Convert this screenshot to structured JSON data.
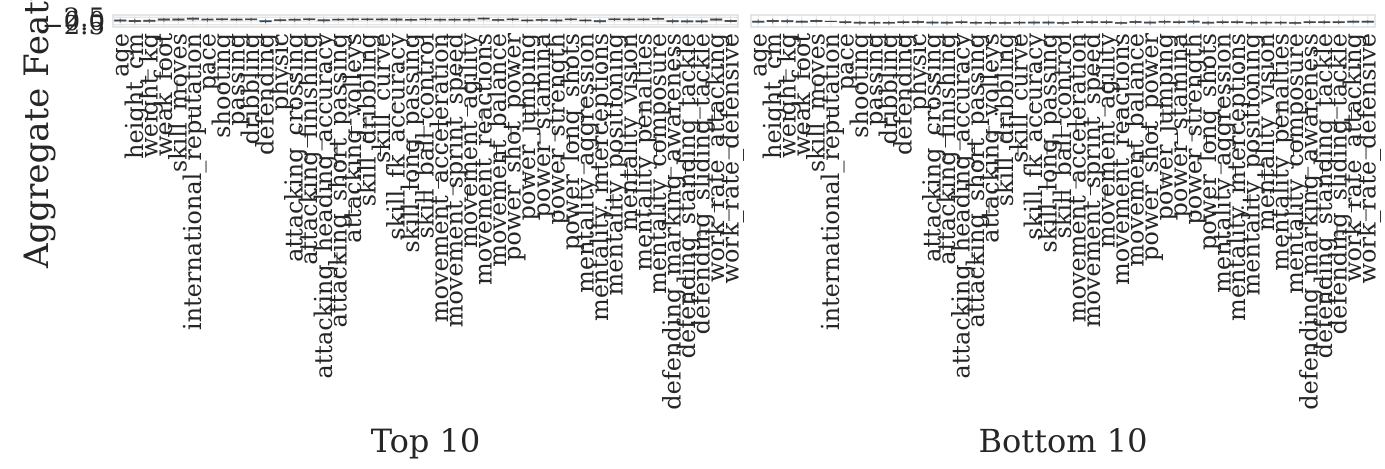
{
  "chart_data": [
    {
      "type": "box",
      "title": "Top 10",
      "ylabel": "Aggregate Feature Value",
      "color": "#5b9bd5",
      "ylim": [
        -4,
        4
      ],
      "yticks": [
        {
          "value": -2.5,
          "label": "−2.5"
        },
        {
          "value": 0,
          "label": "0.0"
        },
        {
          "value": 2.5,
          "label": "2.5"
        }
      ],
      "categories": [
        "age",
        "height_cm",
        "weight_kg",
        "weak_foot",
        "skill_moves",
        "international_reputation",
        "pace",
        "shooting",
        "passing",
        "dribbling",
        "defending",
        "physic",
        "attacking_crossing",
        "attacking_finishing",
        "attacking_heading_accuracy",
        "attacking_short_passing",
        "attacking_volleys",
        "skill_dribbling",
        "skill_curve",
        "skill_fk_accuracy",
        "skill_long_passing",
        "skill_ball_control",
        "movement_acceleration",
        "movement_sprint_speed",
        "movement_agility",
        "movement_reactions",
        "movement_balance",
        "power_shot_power",
        "power_jumping",
        "power_stamina",
        "power_strength",
        "power_long_shots",
        "mentality_aggression",
        "mentality_interceptions",
        "mentality_positioning",
        "mentality_vision",
        "mentality_penalties",
        "mentality_composure",
        "defending_marking_awareness",
        "defending_standing_tackle",
        "defending_sliding_tackle",
        "work_rate_attacking",
        "work_rate_defensive"
      ],
      "boxes": [
        [
          -1,
          -0.2,
          0.3,
          0.8,
          1.5
        ],
        [
          -1.5,
          -0.5,
          0,
          0.5,
          1.5
        ],
        [
          -1.2,
          -0.4,
          0.1,
          0.6,
          1.4
        ],
        [
          -0.5,
          0.5,
          1,
          1.5,
          2
        ],
        [
          0,
          0.5,
          1,
          1.5,
          2
        ],
        [
          0,
          1,
          1.5,
          2,
          2.5
        ],
        [
          -0.5,
          0.6,
          1,
          1.4,
          2
        ],
        [
          0,
          0.8,
          1.2,
          1.6,
          2
        ],
        [
          0,
          0.6,
          1,
          1.4,
          1.8
        ],
        [
          0,
          0.8,
          1.2,
          1.5,
          2
        ],
        [
          -1.5,
          -0.6,
          -0.2,
          0.4,
          1.2
        ],
        [
          -0.5,
          0.2,
          0.6,
          1,
          1.6
        ],
        [
          -0.5,
          0.4,
          0.9,
          1.3,
          1.8
        ],
        [
          0,
          0.8,
          1.2,
          1.6,
          2
        ],
        [
          -1,
          0,
          0.5,
          1,
          1.6
        ],
        [
          0,
          0.6,
          1,
          1.3,
          1.8
        ],
        [
          0,
          0.8,
          1.2,
          1.5,
          2
        ],
        [
          0,
          0.8,
          1.2,
          1.5,
          2
        ],
        [
          0,
          0.7,
          1.1,
          1.5,
          2
        ],
        [
          -0.5,
          0.5,
          1,
          1.5,
          2
        ],
        [
          -0.5,
          0.4,
          0.8,
          1.2,
          1.8
        ],
        [
          0,
          0.8,
          1.2,
          1.5,
          2
        ],
        [
          -0.5,
          0.5,
          0.9,
          1.3,
          1.8
        ],
        [
          -0.5,
          0.5,
          0.9,
          1.3,
          1.8
        ],
        [
          -0.5,
          0.5,
          0.9,
          1.3,
          1.8
        ],
        [
          0.5,
          1.2,
          1.6,
          2,
          2.5
        ],
        [
          -0.5,
          0.3,
          0.7,
          1.1,
          1.6
        ],
        [
          0,
          0.8,
          1.2,
          1.5,
          2
        ],
        [
          -1,
          0,
          0.4,
          0.8,
          1.5
        ],
        [
          -0.5,
          0.3,
          0.7,
          1.1,
          1.6
        ],
        [
          -1,
          -0.1,
          0.4,
          0.9,
          1.5
        ],
        [
          0,
          0.8,
          1.2,
          1.5,
          2
        ],
        [
          -1,
          0,
          0.4,
          0.8,
          1.5
        ],
        [
          -1.5,
          -0.6,
          -0.1,
          0.4,
          1.2
        ],
        [
          0,
          0.8,
          1.2,
          1.6,
          2
        ],
        [
          0,
          0.7,
          1.1,
          1.5,
          2
        ],
        [
          0,
          0.7,
          1.1,
          1.5,
          2
        ],
        [
          0.5,
          1,
          1.4,
          1.8,
          2.3
        ],
        [
          -1.5,
          -0.6,
          -0.1,
          0.4,
          1.2
        ],
        [
          -1.5,
          -0.7,
          -0.2,
          0.3,
          1.1
        ],
        [
          -1.5,
          -0.7,
          -0.2,
          0.3,
          1.1
        ],
        [
          0,
          0.5,
          1,
          1.5,
          2
        ],
        [
          -1,
          -0.5,
          0,
          0.5,
          1
        ]
      ]
    },
    {
      "type": "box",
      "title": "Bottom 10",
      "color": "#5b9bd5",
      "ylim": [
        -4,
        4
      ],
      "categories": [
        "age",
        "height_cm",
        "weight_kg",
        "weak_foot",
        "skill_moves",
        "international_reputation",
        "pace",
        "shooting",
        "passing",
        "dribbling",
        "defending",
        "physic",
        "attacking_crossing",
        "attacking_finishing",
        "attacking_heading_accuracy",
        "attacking_short_passing",
        "attacking_volleys",
        "skill_dribbling",
        "skill_curve",
        "skill_fk_accuracy",
        "skill_long_passing",
        "skill_ball_control",
        "movement_acceleration",
        "movement_sprint_speed",
        "movement_agility",
        "movement_reactions",
        "movement_balance",
        "power_shot_power",
        "power_jumping",
        "power_stamina",
        "power_strength",
        "power_long_shots",
        "mentality_aggression",
        "mentality_interceptions",
        "mentality_positioning",
        "mentality_vision",
        "mentality_penalties",
        "mentality_composure",
        "defending_marking_awareness",
        "defending_standing_tackle",
        "defending_sliding_tackle",
        "work_rate_attacking",
        "work_rate_defensive"
      ],
      "boxes": [
        [
          -1.5,
          -1,
          -0.5,
          0,
          1
        ],
        [
          -1.5,
          -0.5,
          0,
          0.5,
          1.5
        ],
        [
          -1.5,
          -0.6,
          -0.1,
          0.4,
          1.3
        ],
        [
          -1.5,
          -1,
          -0.5,
          0,
          0.5
        ],
        [
          -1,
          -0.5,
          0,
          0.5,
          1
        ],
        [
          -0.5,
          -0.3,
          -0.2,
          -0.1,
          0
        ],
        [
          -2,
          -1.2,
          -0.8,
          -0.3,
          0.5
        ],
        [
          -2.5,
          -1.6,
          -1.2,
          -0.7,
          0
        ],
        [
          -2.5,
          -1.6,
          -1.2,
          -0.8,
          0
        ],
        [
          -2.5,
          -1.6,
          -1.2,
          -0.8,
          0
        ],
        [
          -2,
          -1.2,
          -0.8,
          -0.3,
          0.5
        ],
        [
          -2,
          -1.1,
          -0.7,
          -0.2,
          0.5
        ],
        [
          -2.5,
          -1.5,
          -1.1,
          -0.6,
          0.2
        ],
        [
          -2.5,
          -1.6,
          -1.2,
          -0.7,
          0
        ],
        [
          -2,
          -1.2,
          -0.8,
          -0.3,
          0.5
        ],
        [
          -2.5,
          -1.6,
          -1.2,
          -0.8,
          0
        ],
        [
          -2.5,
          -1.6,
          -1.2,
          -0.8,
          0
        ],
        [
          -2.5,
          -1.7,
          -1.3,
          -0.9,
          -0.2
        ],
        [
          -2.5,
          -1.5,
          -1.1,
          -0.7,
          0
        ],
        [
          -2.5,
          -1.5,
          -1.1,
          -0.6,
          0.2
        ],
        [
          -2.5,
          -1.5,
          -1.1,
          -0.6,
          0.2
        ],
        [
          -2.5,
          -1.7,
          -1.3,
          -0.9,
          -0.2
        ],
        [
          -2,
          -1.2,
          -0.8,
          -0.3,
          0.5
        ],
        [
          -2,
          -1.2,
          -0.8,
          -0.3,
          0.5
        ],
        [
          -2,
          -1.2,
          -0.8,
          -0.3,
          0.5
        ],
        [
          -2.5,
          -1.7,
          -1.3,
          -0.9,
          -0.3
        ],
        [
          -2,
          -1.1,
          -0.7,
          -0.2,
          0.5
        ],
        [
          -2.5,
          -1.5,
          -1.1,
          -0.6,
          0.2
        ],
        [
          -2,
          -1,
          -0.6,
          -0.1,
          0.7
        ],
        [
          -2,
          -1.2,
          -0.8,
          -0.3,
          0.5
        ],
        [
          -2,
          -1,
          -0.5,
          0,
          0.8
        ],
        [
          -2.5,
          -1.6,
          -1.2,
          -0.7,
          0
        ],
        [
          -2,
          -1.2,
          -0.8,
          -0.3,
          0.5
        ],
        [
          -2,
          -1.2,
          -0.8,
          -0.3,
          0.5
        ],
        [
          -2.5,
          -1.6,
          -1.2,
          -0.8,
          0
        ],
        [
          -2.5,
          -1.5,
          -1.1,
          -0.7,
          0
        ],
        [
          -2.5,
          -1.5,
          -1.1,
          -0.7,
          0
        ],
        [
          -2.5,
          -1.7,
          -1.3,
          -0.9,
          -0.3
        ],
        [
          -2,
          -1.2,
          -0.8,
          -0.3,
          0.5
        ],
        [
          -2,
          -1.2,
          -0.8,
          -0.3,
          0.5
        ],
        [
          -2,
          -1.2,
          -0.8,
          -0.3,
          0.5
        ],
        [
          -1.5,
          -1,
          -0.5,
          0,
          0.5
        ],
        [
          -1.5,
          -1,
          -0.5,
          0,
          0.5
        ]
      ]
    }
  ]
}
